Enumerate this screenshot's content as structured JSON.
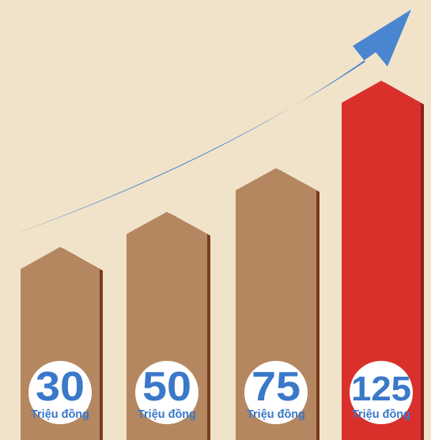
{
  "colors": {
    "background": "#f1e3ca",
    "bar": "#b58760",
    "bar_shadow": "#7a3c1f",
    "highlight_bar": "#d9302c",
    "highlight_shadow": "#8e1f1b",
    "arrow": "#4a86d0",
    "label_circle": "#ffffff",
    "label_text": "#3a78c9"
  },
  "chart_data": {
    "type": "bar",
    "categories": [
      "30",
      "50",
      "75",
      "125"
    ],
    "values": [
      30,
      50,
      75,
      125
    ],
    "unit_label": "Triệu đồng",
    "highlight_index": 3,
    "trend": "increasing",
    "title": "",
    "xlabel": "",
    "ylabel": ""
  }
}
